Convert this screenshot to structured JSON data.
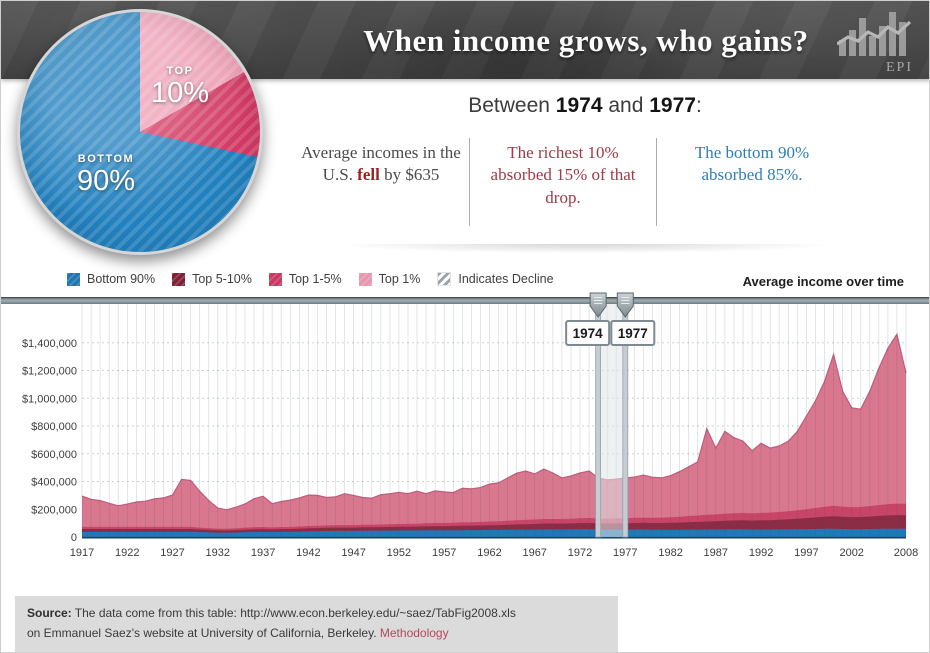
{
  "header": {
    "title": "When income grows, who gains?",
    "logo_text": "EPI"
  },
  "pie": {
    "top_label": "TOP",
    "top_value": "10%",
    "bottom_label": "BOTTOM",
    "bottom_value": "90%"
  },
  "subheading": {
    "pre": "Between ",
    "year_from": "1974",
    "mid": " and ",
    "year_to": "1977",
    "post": ":"
  },
  "stats": {
    "card1": {
      "pre": "Average incomes in the U.S. ",
      "bold": "fell",
      "post": " by $635"
    },
    "card2": {
      "text": "The richest 10% absorbed 15% of that drop."
    },
    "card3": {
      "text": "The bottom 90% absorbed 85%."
    }
  },
  "legend": {
    "items": [
      {
        "key": "bottom-90",
        "label": "Bottom 90%",
        "color": "#2276ae",
        "type": "solid"
      },
      {
        "key": "top-5-10",
        "label": "Top 5-10%",
        "color": "#7e2136",
        "type": "solid"
      },
      {
        "key": "top-1-5",
        "label": "Top 1-5%",
        "color": "#c43a60",
        "type": "solid"
      },
      {
        "key": "top-1",
        "label": "Top 1%",
        "color": "#e898ae",
        "type": "solid"
      },
      {
        "key": "decline",
        "label": "Indicates Decline",
        "type": "stripes"
      }
    ]
  },
  "chart_title": "Average income over time",
  "slider": {
    "from_label": "1974",
    "to_label": "1977"
  },
  "source": {
    "label": "Source:",
    "line1": " The data come from this table: http://www.econ.berkeley.edu/~saez/TabFig2008.xls",
    "line2": "on Emmanuel Saez's website at University of California, Berkeley. ",
    "link": "Methodology"
  },
  "chart_data": {
    "type": "area",
    "stacked": true,
    "title": "Average income over time",
    "unit": "thousands of dollars (average income per group, stacked)",
    "years_start": 1917,
    "years_end": 2008,
    "ylim_thousands": [
      0,
      1675
    ],
    "grid": "vertical-per-year, dotted horizontal per $200,000",
    "legend_position": "top-left above chart",
    "x_tick_labels": [
      "1917",
      "1922",
      "1927",
      "1932",
      "1937",
      "1942",
      "1947",
      "1952",
      "1957",
      "1962",
      "1967",
      "1972",
      "1977",
      "1982",
      "1987",
      "1992",
      "1997",
      "2002",
      "2008"
    ],
    "y_tick_labels": [
      "$1,400,000",
      "$1,200,000",
      "$1,000,000",
      "$800,000",
      "$600,000",
      "$400,000",
      "$200,000",
      "0"
    ],
    "y_tick_values_thousands": [
      1400,
      1200,
      1000,
      800,
      600,
      400,
      200,
      0
    ],
    "selection": {
      "from": 1974,
      "to": 1977
    },
    "series": [
      {
        "name": "Bottom 90%",
        "color": "#1f78b8",
        "values": [
          37,
          37,
          37,
          37,
          37,
          37,
          37,
          37,
          37,
          37,
          37,
          37,
          37,
          35,
          33,
          31,
          30,
          32,
          34,
          36,
          37,
          36,
          37,
          38,
          39,
          41,
          42,
          43,
          44,
          44,
          44,
          45,
          45,
          46,
          46,
          47,
          47,
          47,
          48,
          48,
          48,
          48,
          49,
          50,
          50,
          51,
          51,
          52,
          53,
          53,
          54,
          55,
          55,
          55,
          55,
          56,
          56,
          54,
          53,
          53,
          53,
          54,
          54,
          53,
          52,
          52,
          52,
          53,
          53,
          54,
          54,
          55,
          55,
          55,
          54,
          54,
          54,
          55,
          55,
          56,
          57,
          58,
          59,
          59,
          58,
          57,
          57,
          58,
          59,
          60,
          60,
          59
        ]
      },
      {
        "name": "Top 5-10%",
        "color": "#8c2c44",
        "values": [
          21,
          21,
          21,
          21,
          21,
          21,
          21,
          21,
          21,
          21,
          21,
          21,
          21,
          19,
          18,
          17,
          17,
          18,
          19,
          20,
          20,
          19,
          20,
          20,
          21,
          22,
          22,
          23,
          24,
          24,
          24,
          25,
          25,
          25,
          26,
          27,
          27,
          28,
          29,
          30,
          30,
          31,
          32,
          32,
          33,
          34,
          35,
          36,
          38,
          39,
          40,
          42,
          42,
          42,
          43,
          44,
          45,
          44,
          44,
          45,
          46,
          47,
          48,
          48,
          49,
          50,
          52,
          54,
          56,
          58,
          60,
          62,
          64,
          65,
          64,
          66,
          67,
          69,
          72,
          75,
          79,
          83,
          87,
          90,
          88,
          86,
          87,
          90,
          93,
          96,
          98,
          98
        ]
      },
      {
        "name": "Top 1-5%",
        "color": "#c84568",
        "values": [
          15,
          15,
          15,
          15,
          15,
          15,
          15,
          15,
          15,
          15,
          15,
          15,
          15,
          14,
          13,
          12,
          12,
          13,
          14,
          15,
          15,
          14,
          15,
          15,
          16,
          16,
          17,
          17,
          18,
          18,
          18,
          19,
          19,
          19,
          20,
          20,
          21,
          21,
          22,
          23,
          23,
          24,
          25,
          25,
          26,
          27,
          28,
          29,
          30,
          31,
          32,
          33,
          33,
          33,
          34,
          35,
          36,
          35,
          35,
          36,
          36,
          37,
          38,
          38,
          39,
          40,
          42,
          44,
          46,
          48,
          49,
          51,
          52,
          53,
          52,
          54,
          55,
          56,
          58,
          61,
          64,
          68,
          72,
          75,
          73,
          71,
          72,
          75,
          78,
          81,
          83,
          82
        ]
      },
      {
        "name": "Top 1%",
        "color": "#d9778f",
        "values": [
          222,
          199,
          189,
          170,
          152,
          164,
          179,
          185,
          202,
          209,
          229,
          342,
          335,
          262,
          198,
          148,
          137,
          152,
          171,
          205,
          221,
          171,
          184,
          193,
          206,
          223,
          219,
          202,
          204,
          226,
          214,
          196,
          191,
          215,
          220,
          228,
          217,
          234,
          213,
          231,
          225,
          217,
          246,
          240,
          247,
          269,
          276,
          308,
          339,
          353,
          328,
          360,
          331,
          296,
          308,
          326,
          339,
          293,
          279,
          283,
          290,
          294,
          306,
          292,
          286,
          300,
          325,
          355,
          386,
          621,
          478,
          593,
          545,
          518,
          451,
          502,
          465,
          476,
          506,
          569,
          671,
          772,
          903,
          1092,
          832,
          717,
          705,
          828,
          986,
          1124,
          1220,
          942
        ]
      }
    ]
  }
}
